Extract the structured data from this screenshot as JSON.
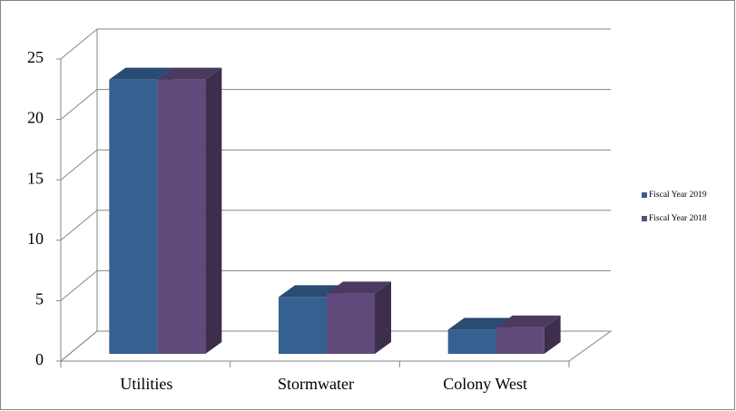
{
  "chart_data": {
    "type": "bar3d",
    "categories": [
      "Utilities",
      "Stormwater",
      "Colony West"
    ],
    "series": [
      {
        "name": "Fiscal Year 2019",
        "color": "#366092",
        "values": [
          22.7,
          4.7,
          2.0
        ]
      },
      {
        "name": "Fiscal Year 2018",
        "color": "#604a7b",
        "values": [
          22.7,
          5.0,
          2.2
        ]
      }
    ],
    "ylim": [
      0,
      25
    ],
    "yticks": [
      0,
      5,
      10,
      15,
      20,
      25
    ],
    "grid": true,
    "legend": "right"
  }
}
